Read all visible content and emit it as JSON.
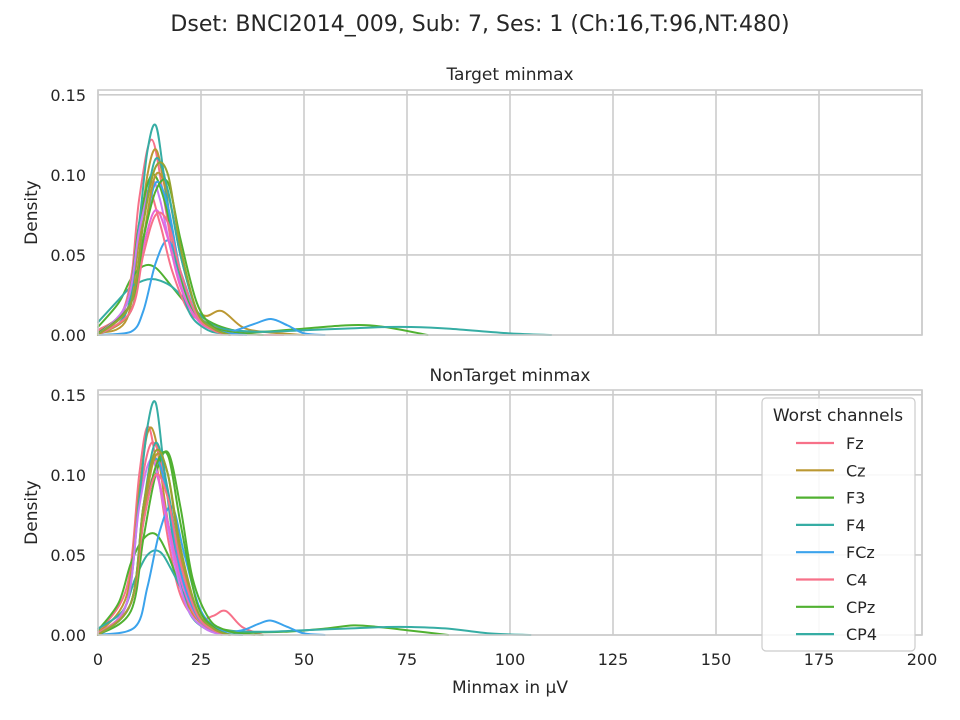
{
  "figure": {
    "suptitle": "Dset: BNCI2014_009, Sub: 7, Ses: 1 (Ch:16,T:96,NT:480)"
  },
  "chart_data": [
    {
      "type": "line",
      "title": "Target minmax",
      "xlabel": "",
      "ylabel": "Density",
      "xlim": [
        0,
        200
      ],
      "ylim": [
        0,
        0.153
      ],
      "xticks": [
        "0",
        "25",
        "50",
        "75",
        "100",
        "125",
        "150",
        "175",
        "200"
      ],
      "yticks": [
        "0.00",
        "0.05",
        "0.10",
        "0.15"
      ],
      "grid": true,
      "series": [
        {
          "name": "Fz",
          "color": "#f77189",
          "x": [
            0,
            7,
            10,
            13,
            16,
            19,
            22,
            25,
            30,
            35,
            40,
            45
          ],
          "y": [
            0.002,
            0.02,
            0.085,
            0.122,
            0.085,
            0.04,
            0.02,
            0.01,
            0.003,
            0.001,
            0,
            0
          ]
        },
        {
          "name": "Cz",
          "color": "#bb9832",
          "x": [
            0,
            7,
            10,
            12,
            14,
            16,
            19,
            22,
            26,
            30,
            35,
            40,
            50
          ],
          "y": [
            0.001,
            0.01,
            0.06,
            0.1,
            0.116,
            0.095,
            0.05,
            0.02,
            0.012,
            0.015,
            0.005,
            0.002,
            0
          ]
        },
        {
          "name": "F3",
          "color": "#50b131",
          "x": [
            0,
            5,
            8,
            11,
            14,
            18,
            22,
            26,
            30,
            35,
            40,
            50,
            60,
            66,
            72,
            80
          ],
          "y": [
            0.005,
            0.02,
            0.035,
            0.043,
            0.042,
            0.03,
            0.018,
            0.01,
            0.005,
            0.002,
            0.002,
            0.004,
            0.006,
            0.006,
            0.004,
            0
          ]
        },
        {
          "name": "F4",
          "color": "#36ada4",
          "x": [
            0,
            5,
            8,
            11,
            13,
            15,
            18,
            22,
            26,
            30,
            40,
            50,
            60,
            70,
            76,
            85,
            100,
            110
          ],
          "y": [
            0.008,
            0.022,
            0.03,
            0.034,
            0.035,
            0.034,
            0.03,
            0.02,
            0.01,
            0.004,
            0.002,
            0.003,
            0.004,
            0.005,
            0.005,
            0.004,
            0.001,
            0
          ]
        },
        {
          "name": "FCz",
          "color": "#3ba3ec",
          "x": [
            0,
            8,
            11,
            14,
            17,
            20,
            24,
            28,
            32,
            38,
            42,
            46,
            50,
            55
          ],
          "y": [
            0,
            0.002,
            0.015,
            0.045,
            0.059,
            0.04,
            0.012,
            0.003,
            0.002,
            0.007,
            0.01,
            0.006,
            0.001,
            0
          ]
        },
        {
          "name": "C4",
          "color": "#f77189",
          "x": [
            0,
            6,
            9,
            12,
            15,
            18,
            22,
            26,
            30,
            35,
            40
          ],
          "y": [
            0.003,
            0.015,
            0.05,
            0.09,
            0.07,
            0.04,
            0.015,
            0.008,
            0.003,
            0.001,
            0
          ]
        },
        {
          "name": "CPz",
          "color": "#50b131",
          "x": [
            0,
            7,
            10,
            13,
            16,
            19,
            22,
            26,
            30,
            35,
            40
          ],
          "y": [
            0.001,
            0.02,
            0.07,
            0.1,
            0.085,
            0.05,
            0.02,
            0.008,
            0.003,
            0.001,
            0
          ]
        },
        {
          "name": "CP4",
          "color": "#36ada4",
          "x": [
            0,
            7,
            10,
            12,
            14,
            16,
            19,
            22,
            26,
            30,
            35
          ],
          "y": [
            0,
            0.015,
            0.07,
            0.115,
            0.131,
            0.1,
            0.045,
            0.015,
            0.004,
            0.001,
            0
          ]
        },
        {
          "color": "#cc7af4",
          "x": [
            0,
            7,
            10,
            13,
            15,
            18,
            22,
            26,
            30,
            35
          ],
          "y": [
            0,
            0.02,
            0.065,
            0.095,
            0.085,
            0.05,
            0.018,
            0.006,
            0.002,
            0
          ]
        },
        {
          "color": "#e866d5",
          "x": [
            0,
            8,
            11,
            14,
            17,
            20,
            24,
            28,
            32
          ],
          "y": [
            0,
            0.02,
            0.055,
            0.078,
            0.06,
            0.03,
            0.01,
            0.003,
            0
          ]
        },
        {
          "color": "#3ba3ec",
          "x": [
            0,
            8,
            11,
            14,
            17,
            20,
            24,
            28,
            32,
            36
          ],
          "y": [
            0,
            0.015,
            0.06,
            0.095,
            0.08,
            0.04,
            0.012,
            0.004,
            0.001,
            0
          ]
        },
        {
          "color": "#bb9832",
          "x": [
            0,
            8,
            11,
            14,
            17,
            20,
            24,
            28,
            32
          ],
          "y": [
            0,
            0.015,
            0.06,
            0.1,
            0.088,
            0.05,
            0.015,
            0.004,
            0
          ]
        },
        {
          "color": "#50b131",
          "x": [
            0,
            8,
            11,
            14,
            17,
            20,
            24,
            28,
            32
          ],
          "y": [
            0,
            0.02,
            0.06,
            0.09,
            0.095,
            0.06,
            0.02,
            0.005,
            0
          ]
        },
        {
          "color": "#36ada4",
          "x": [
            0,
            8,
            11,
            14,
            17,
            20,
            24,
            28,
            32
          ],
          "y": [
            0,
            0.02,
            0.07,
            0.11,
            0.09,
            0.05,
            0.015,
            0.004,
            0
          ]
        },
        {
          "color": "#f77189",
          "x": [
            0,
            8,
            11,
            14,
            17,
            20,
            24,
            28,
            32
          ],
          "y": [
            0,
            0.015,
            0.05,
            0.075,
            0.07,
            0.04,
            0.012,
            0.003,
            0
          ]
        },
        {
          "color": "#97a431",
          "x": [
            0,
            8,
            11,
            14,
            17,
            20,
            24,
            28,
            32
          ],
          "y": [
            0,
            0.02,
            0.07,
            0.105,
            0.1,
            0.055,
            0.015,
            0.004,
            0
          ]
        }
      ]
    },
    {
      "type": "line",
      "title": "NonTarget minmax",
      "xlabel": "Minmax in μV",
      "ylabel": "Density",
      "xlim": [
        0,
        200
      ],
      "ylim": [
        0,
        0.153
      ],
      "xticks": [
        "0",
        "25",
        "50",
        "75",
        "100",
        "125",
        "150",
        "175",
        "200"
      ],
      "yticks": [
        "0.00",
        "0.05",
        "0.10",
        "0.15"
      ],
      "grid": true,
      "legend": {
        "title": "Worst channels",
        "position": "right",
        "entries": [
          {
            "label": "Fz",
            "color": "#f77189"
          },
          {
            "label": "Cz",
            "color": "#bb9832"
          },
          {
            "label": "F3",
            "color": "#50b131"
          },
          {
            "label": "F4",
            "color": "#36ada4"
          },
          {
            "label": "FCz",
            "color": "#3ba3ec"
          },
          {
            "label": "C4",
            "color": "#f77189"
          },
          {
            "label": "CPz",
            "color": "#50b131"
          },
          {
            "label": "CP4",
            "color": "#36ada4"
          }
        ]
      },
      "series": [
        {
          "name": "Fz",
          "color": "#f77189",
          "x": [
            0,
            7,
            10,
            12,
            14,
            17,
            20,
            24,
            28,
            31,
            35,
            40
          ],
          "y": [
            0.002,
            0.03,
            0.1,
            0.13,
            0.11,
            0.06,
            0.025,
            0.01,
            0.012,
            0.015,
            0.005,
            0
          ]
        },
        {
          "name": "Cz",
          "color": "#bb9832",
          "x": [
            0,
            7,
            10,
            12,
            14,
            17,
            20,
            24,
            28,
            32,
            38
          ],
          "y": [
            0.001,
            0.025,
            0.09,
            0.126,
            0.122,
            0.07,
            0.03,
            0.01,
            0.004,
            0.002,
            0
          ]
        },
        {
          "name": "F3",
          "color": "#50b131",
          "x": [
            0,
            5,
            8,
            11,
            14,
            17,
            20,
            24,
            28,
            35,
            45,
            55,
            62,
            68,
            75,
            85
          ],
          "y": [
            0.003,
            0.02,
            0.045,
            0.06,
            0.063,
            0.05,
            0.03,
            0.012,
            0.005,
            0.002,
            0.002,
            0.004,
            0.006,
            0.005,
            0.003,
            0
          ]
        },
        {
          "name": "F4",
          "color": "#36ada4",
          "x": [
            0,
            6,
            9,
            12,
            15,
            18,
            22,
            26,
            30,
            40,
            50,
            60,
            70,
            76,
            85,
            95,
            105
          ],
          "y": [
            0.004,
            0.015,
            0.035,
            0.05,
            0.052,
            0.04,
            0.02,
            0.008,
            0.003,
            0.002,
            0.003,
            0.004,
            0.005,
            0.005,
            0.004,
            0.001,
            0
          ]
        },
        {
          "name": "FCz",
          "color": "#3ba3ec",
          "x": [
            0,
            9,
            12,
            15,
            18,
            21,
            25,
            30,
            35,
            39,
            42,
            46,
            50,
            55
          ],
          "y": [
            0,
            0.005,
            0.03,
            0.065,
            0.08,
            0.05,
            0.015,
            0.003,
            0.003,
            0.007,
            0.009,
            0.005,
            0.001,
            0
          ]
        },
        {
          "name": "C4",
          "color": "#f77189",
          "x": [
            0,
            7,
            10,
            13,
            16,
            19,
            22,
            26,
            30,
            35
          ],
          "y": [
            0.001,
            0.02,
            0.085,
            0.12,
            0.1,
            0.05,
            0.02,
            0.005,
            0.001,
            0
          ]
        },
        {
          "name": "CPz",
          "color": "#50b131",
          "x": [
            0,
            8,
            11,
            14,
            17,
            20,
            23,
            27,
            31,
            35,
            40
          ],
          "y": [
            0,
            0.015,
            0.06,
            0.1,
            0.114,
            0.08,
            0.035,
            0.01,
            0.003,
            0.001,
            0
          ]
        },
        {
          "name": "CP4",
          "color": "#36ada4",
          "x": [
            0,
            7,
            10,
            12,
            14,
            16,
            19,
            22,
            26,
            30,
            35
          ],
          "y": [
            0,
            0.02,
            0.085,
            0.13,
            0.145,
            0.105,
            0.045,
            0.015,
            0.004,
            0.001,
            0
          ]
        },
        {
          "color": "#cc7af4",
          "x": [
            0,
            7,
            10,
            13,
            16,
            19,
            22,
            26,
            30
          ],
          "y": [
            0,
            0.02,
            0.08,
            0.11,
            0.08,
            0.04,
            0.015,
            0.004,
            0
          ]
        },
        {
          "color": "#e866d5",
          "x": [
            0,
            8,
            11,
            14,
            17,
            20,
            24,
            28,
            32
          ],
          "y": [
            0,
            0.02,
            0.075,
            0.1,
            0.07,
            0.035,
            0.012,
            0.003,
            0
          ]
        },
        {
          "color": "#3ba3ec",
          "x": [
            0,
            8,
            11,
            14,
            17,
            20,
            24,
            28,
            32
          ],
          "y": [
            0,
            0.02,
            0.08,
            0.11,
            0.085,
            0.04,
            0.012,
            0.003,
            0
          ]
        },
        {
          "color": "#bb9832",
          "x": [
            0,
            8,
            11,
            14,
            17,
            20,
            24,
            28,
            32
          ],
          "y": [
            0,
            0.02,
            0.075,
            0.112,
            0.1,
            0.05,
            0.015,
            0.004,
            0
          ]
        },
        {
          "color": "#50b131",
          "x": [
            0,
            8,
            11,
            14,
            17,
            20,
            24,
            28,
            32
          ],
          "y": [
            0,
            0.02,
            0.07,
            0.105,
            0.112,
            0.07,
            0.02,
            0.005,
            0
          ]
        },
        {
          "color": "#36ada4",
          "x": [
            0,
            8,
            11,
            14,
            17,
            20,
            24,
            28,
            32
          ],
          "y": [
            0,
            0.02,
            0.08,
            0.12,
            0.09,
            0.045,
            0.014,
            0.004,
            0
          ]
        },
        {
          "color": "#f77189",
          "x": [
            0,
            8,
            11,
            14,
            17,
            20,
            24,
            28,
            32
          ],
          "y": [
            0,
            0.02,
            0.07,
            0.1,
            0.085,
            0.045,
            0.013,
            0.003,
            0
          ]
        },
        {
          "color": "#97a431",
          "x": [
            0,
            8,
            11,
            14,
            17,
            20,
            24,
            28,
            32
          ],
          "y": [
            0,
            0.02,
            0.08,
            0.115,
            0.1,
            0.055,
            0.016,
            0.004,
            0
          ]
        }
      ]
    }
  ]
}
